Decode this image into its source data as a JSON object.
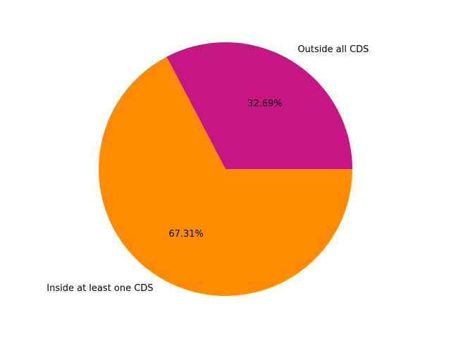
{
  "chart_data": {
    "type": "pie",
    "title": "",
    "start_angle_deg": 0,
    "direction": "counterclockwise",
    "slices": [
      {
        "label": "Outside all CDS",
        "value": 32.69,
        "pct_label": "32.69%",
        "color": "#c71585"
      },
      {
        "label": "Inside at least one CDS",
        "value": 67.31,
        "pct_label": "67.31%",
        "color": "#ff8c00"
      }
    ]
  }
}
